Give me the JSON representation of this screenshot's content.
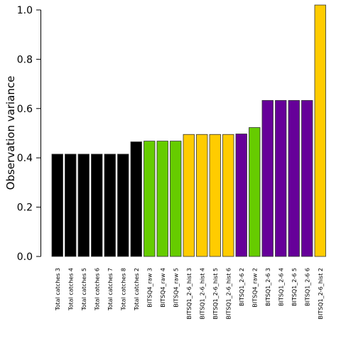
{
  "chart_data": {
    "type": "bar",
    "ylabel": "Observation variance",
    "xlabel": "",
    "ylim": [
      0,
      1.0
    ],
    "yticks": [
      "0.0",
      "0.2",
      "0.4",
      "0.6",
      "0.8",
      "1.0"
    ],
    "grid": false,
    "categories": [
      "Total catches 3",
      "Total catches 4",
      "Total catches 5",
      "Total catches 6",
      "Total catches 7",
      "Total catches 8",
      "Total catches 2",
      "BITSQ4_raw 3",
      "BITSQ4_raw 4",
      "BITSQ4_raw 5",
      "BITSQ1_2-6_hist 3",
      "BITSQ1_2-6_hist 4",
      "BITSQ1_2-6_hist 5",
      "BITSQ1_2-6_hist 6",
      "BITSQ1_2-6 2",
      "BITSQ4_raw 2",
      "BITSQ1_2-6 3",
      "BITSQ1_2-6 4",
      "BITSQ1_2-6 5",
      "BITSQ1_2-6 6",
      "BITSQ1_2-6_hist 2"
    ],
    "values": [
      0.415,
      0.415,
      0.415,
      0.415,
      0.415,
      0.415,
      0.465,
      0.468,
      0.468,
      0.468,
      0.495,
      0.495,
      0.495,
      0.495,
      0.497,
      0.523,
      0.633,
      0.633,
      0.633,
      0.633,
      1.02
    ],
    "colors": [
      "#000000",
      "#000000",
      "#000000",
      "#000000",
      "#000000",
      "#000000",
      "#000000",
      "#66cc00",
      "#66cc00",
      "#66cc00",
      "#ffcc00",
      "#ffcc00",
      "#ffcc00",
      "#ffcc00",
      "#660099",
      "#66cc00",
      "#660099",
      "#660099",
      "#660099",
      "#660099",
      "#ffcc00"
    ]
  }
}
